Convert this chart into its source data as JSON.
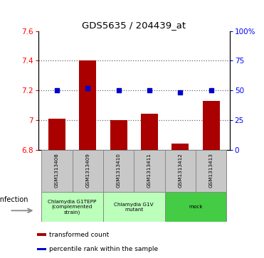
{
  "title": "GDS5635 / 204439_at",
  "samples": [
    "GSM1313408",
    "GSM1313409",
    "GSM1313410",
    "GSM1313411",
    "GSM1313412",
    "GSM1313413"
  ],
  "bar_values": [
    7.01,
    7.4,
    7.0,
    7.04,
    6.84,
    7.13
  ],
  "percentile_values": [
    50,
    52,
    50,
    50,
    48,
    50
  ],
  "ylim_left": [
    6.8,
    7.6
  ],
  "ylim_right": [
    0,
    100
  ],
  "yticks_left": [
    6.8,
    7.0,
    7.2,
    7.4,
    7.6
  ],
  "yticks_right": [
    0,
    25,
    50,
    75,
    100
  ],
  "ytick_labels_left": [
    "6.8",
    "7",
    "7.2",
    "7.4",
    "7.6"
  ],
  "ytick_labels_right": [
    "0",
    "25",
    "50",
    "75",
    "100%"
  ],
  "bar_color": "#aa0000",
  "dot_color": "#0000cc",
  "bar_width": 0.55,
  "group_configs": [
    {
      "start": 0,
      "end": 1,
      "label": "Chlamydia G1TEPP\n(complemented\nstrain)",
      "color": "#bbffbb"
    },
    {
      "start": 2,
      "end": 3,
      "label": "Chlamydia G1V\nmutant",
      "color": "#bbffbb"
    },
    {
      "start": 4,
      "end": 5,
      "label": "mock",
      "color": "#44cc44"
    }
  ],
  "infection_label": "infection",
  "legend_bar_label": "transformed count",
  "legend_dot_label": "percentile rank within the sample",
  "grid_color": "#000000",
  "grid_alpha": 0.6,
  "sample_box_color": "#c8c8c8",
  "sample_box_edge": "#888888"
}
